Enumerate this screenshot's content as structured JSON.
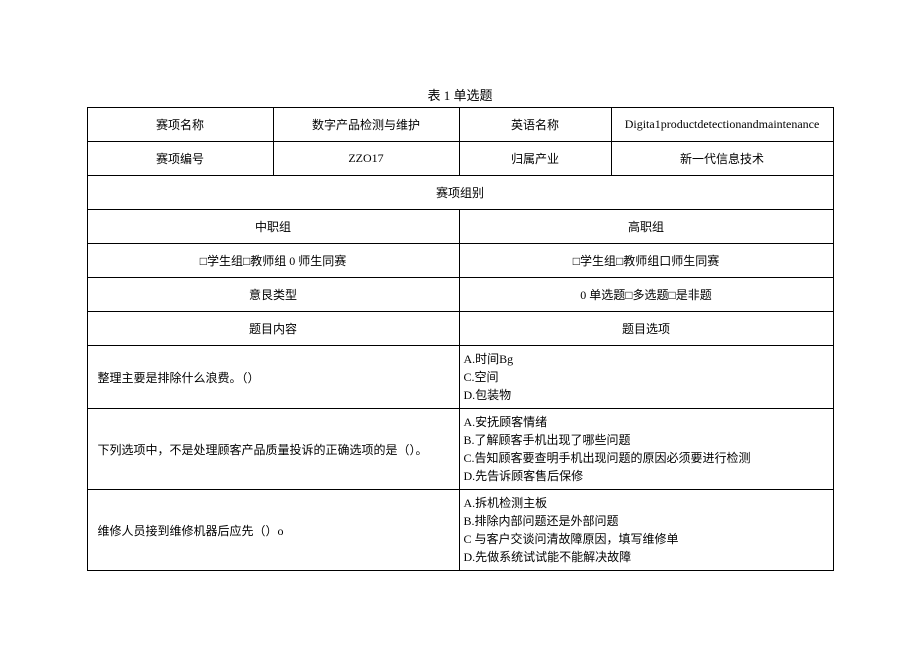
{
  "title": "表 1 单选题",
  "headers": {
    "name_label": "赛项名称",
    "name_value": "数字产品检测与维护",
    "english_label": "英语名称",
    "english_value": "Digita1productdetectionandmaintenance",
    "id_label": "赛项编号",
    "id_value": "ZZO17",
    "industry_label": "归属产业",
    "industry_value": "新一代信息技术",
    "group_label": "赛项组别",
    "mid_group": "中职组",
    "high_group": "高职组",
    "mid_checkbox": "□学生组□教师组 0 师生同赛",
    "high_checkbox": "□学生组□教师组口师生同赛",
    "type_label": "意艮类型",
    "type_value": "0 单选题□多选题□是非题",
    "content_label": "题目内容",
    "option_label": "题目选项"
  },
  "questions": [
    {
      "text": "整理主要是排除什么浪费。（）",
      "options": [
        "A.时间Bg",
        "C.空间",
        "D.包装物"
      ]
    },
    {
      "text": "下列选项中，不是处理顾客产品质量投诉的正确选项的是（）。",
      "options": [
        "A.安抚顾客情绪",
        "B.了解顾客手机出现了哪些问题",
        "C.告知顾客要查明手机出现问题的原因必须要进行检测",
        "D.先告诉顾客售后保修"
      ]
    },
    {
      "text": "维修人员接到维修机器后应先（）o",
      "options": [
        "A.拆机检测主板",
        "B.排除内部问题还是外部问题",
        "C 与客户交谈问清故障原因，填写维修单",
        "D.先做系统试试能不能解决故障"
      ]
    }
  ]
}
